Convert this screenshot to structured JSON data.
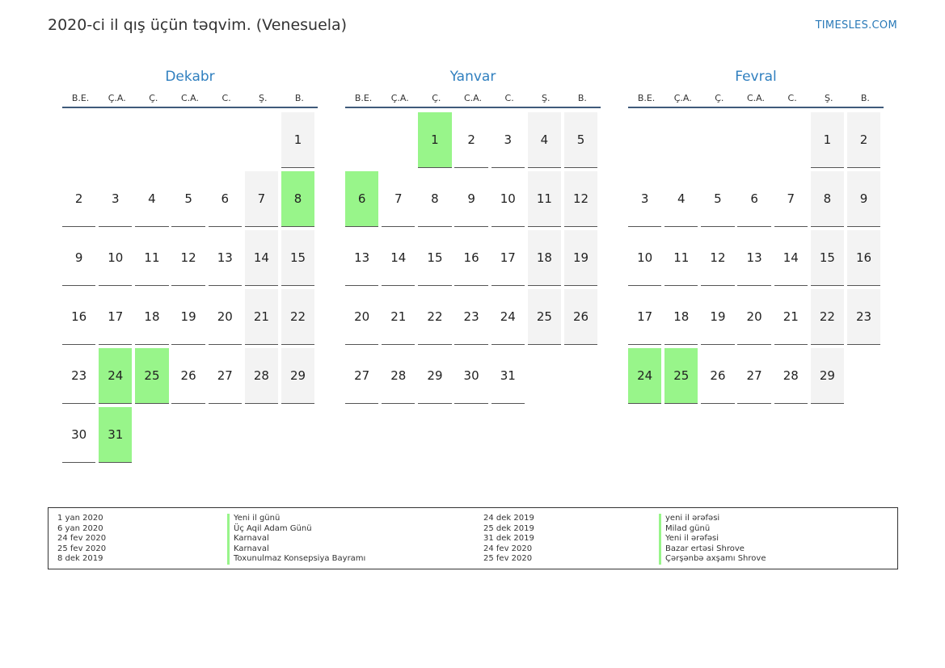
{
  "header": {
    "title": "2020-ci il qış üçün təqvim. (Venesuela)",
    "site": "TIMESLES.COM"
  },
  "weekdays": [
    "B.E.",
    "Ç.A.",
    "Ç.",
    "C.A.",
    "C.",
    "Ş.",
    "B."
  ],
  "months": [
    {
      "name": "Dekabr",
      "weeks": [
        [
          "",
          "",
          "",
          "",
          "",
          "",
          "1"
        ],
        [
          "2",
          "3",
          "4",
          "5",
          "6",
          "7",
          "8"
        ],
        [
          "9",
          "10",
          "11",
          "12",
          "13",
          "14",
          "15"
        ],
        [
          "16",
          "17",
          "18",
          "19",
          "20",
          "21",
          "22"
        ],
        [
          "23",
          "24",
          "25",
          "26",
          "27",
          "28",
          "29"
        ],
        [
          "30",
          "31",
          "",
          "",
          "",
          "",
          ""
        ]
      ],
      "holidays": [
        "8",
        "24",
        "25",
        "31"
      ]
    },
    {
      "name": "Yanvar",
      "weeks": [
        [
          "",
          "",
          "1",
          "2",
          "3",
          "4",
          "5"
        ],
        [
          "6",
          "7",
          "8",
          "9",
          "10",
          "11",
          "12"
        ],
        [
          "13",
          "14",
          "15",
          "16",
          "17",
          "18",
          "19"
        ],
        [
          "20",
          "21",
          "22",
          "23",
          "24",
          "25",
          "26"
        ],
        [
          "27",
          "28",
          "29",
          "30",
          "31",
          "",
          ""
        ]
      ],
      "holidays": [
        "1",
        "6"
      ]
    },
    {
      "name": "Fevral",
      "weeks": [
        [
          "",
          "",
          "",
          "",
          "",
          "1",
          "2"
        ],
        [
          "3",
          "4",
          "5",
          "6",
          "7",
          "8",
          "9"
        ],
        [
          "10",
          "11",
          "12",
          "13",
          "14",
          "15",
          "16"
        ],
        [
          "17",
          "18",
          "19",
          "20",
          "21",
          "22",
          "23"
        ],
        [
          "24",
          "25",
          "26",
          "27",
          "28",
          "29",
          ""
        ]
      ],
      "holidays": [
        "24",
        "25"
      ]
    }
  ],
  "legend": {
    "left": [
      {
        "date": "1 yan 2020",
        "name": "Yeni il günü"
      },
      {
        "date": "6 yan 2020",
        "name": "Üç Aqil Adam Günü"
      },
      {
        "date": "24 fev 2020",
        "name": "Karnaval"
      },
      {
        "date": "25 fev 2020",
        "name": "Karnaval"
      },
      {
        "date": "8 dek 2019",
        "name": "Toxunulmaz Konsepsiya Bayramı"
      }
    ],
    "right": [
      {
        "date": "24 dek 2019",
        "name": "yeni il ərəfəsi"
      },
      {
        "date": "25 dek 2019",
        "name": "Milad günü"
      },
      {
        "date": "31 dek 2019",
        "name": "Yeni il ərəfəsi"
      },
      {
        "date": "24 fev 2020",
        "name": "Bazar ertəsi Shrove"
      },
      {
        "date": "25 fev 2020",
        "name": "Çərşənbə axşamı Shrove"
      }
    ]
  },
  "colors": {
    "holiday": "#98f58a",
    "weekend": "#f3f3f3",
    "month_title": "#2f7fbf"
  }
}
